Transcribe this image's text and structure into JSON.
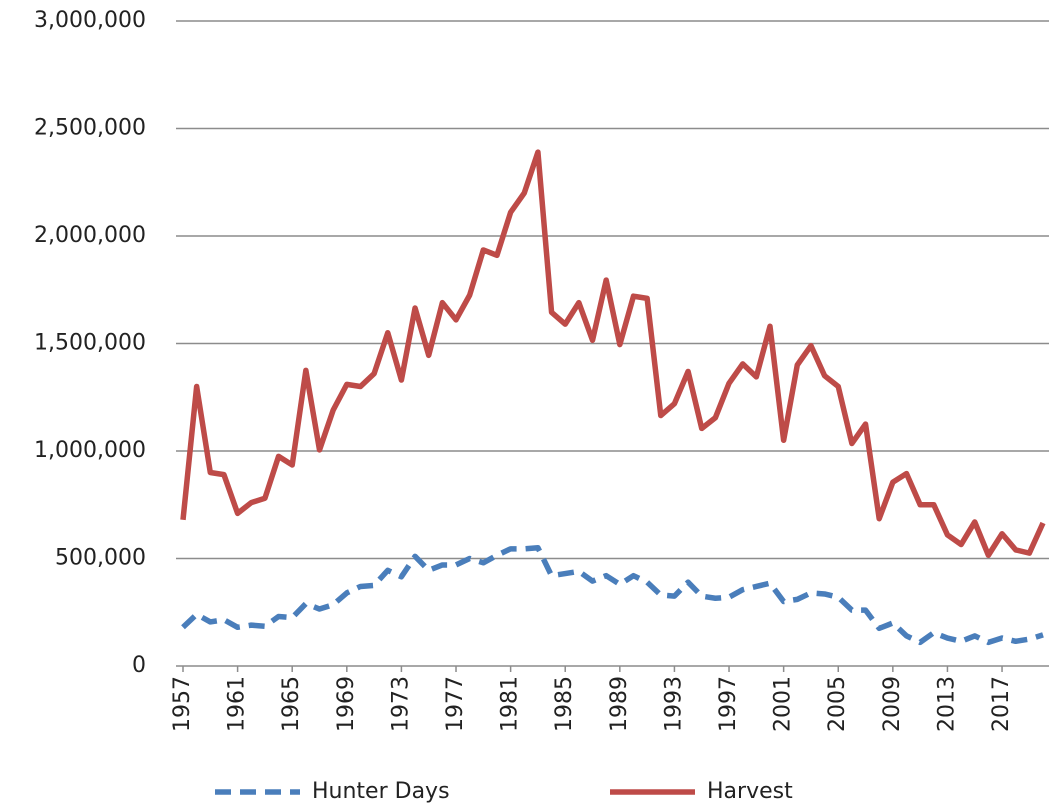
{
  "chart_data": {
    "type": "line",
    "x": [
      1957,
      1958,
      1959,
      1960,
      1961,
      1962,
      1963,
      1964,
      1965,
      1966,
      1967,
      1968,
      1969,
      1970,
      1971,
      1972,
      1973,
      1974,
      1975,
      1976,
      1977,
      1978,
      1979,
      1980,
      1981,
      1982,
      1983,
      1984,
      1985,
      1986,
      1987,
      1988,
      1989,
      1990,
      1991,
      1992,
      1993,
      1994,
      1995,
      1996,
      1997,
      1998,
      1999,
      2000,
      2001,
      2002,
      2003,
      2004,
      2005,
      2006,
      2007,
      2008,
      2009,
      2010,
      2011,
      2012,
      2013,
      2014,
      2015,
      2016,
      2017,
      2018,
      2019,
      2020
    ],
    "xlim": [
      1957,
      2020
    ],
    "xticks": [
      1957,
      1961,
      1965,
      1969,
      1973,
      1977,
      1981,
      1985,
      1989,
      1993,
      1997,
      2001,
      2005,
      2009,
      2013,
      2017
    ],
    "ylim": [
      0,
      3000000
    ],
    "yticks": [
      0,
      {
        "value": 500000,
        "label": "500,000"
      },
      {
        "value": 1000000,
        "label": "1,000,000"
      },
      {
        "value": 1500000,
        "label": "1,500,000"
      },
      {
        "value": 2000000,
        "label": "2,000,000"
      },
      {
        "value": 2500000,
        "label": "2,500,000"
      },
      {
        "value": 3000000,
        "label": "3,000,000"
      }
    ],
    "grid": true,
    "legend": "bottom",
    "series": [
      {
        "name": "Hunter Days",
        "color": "#4a7ebb",
        "style": "dashed",
        "values": [
          180000,
          240000,
          205000,
          215000,
          180000,
          190000,
          185000,
          230000,
          225000,
          290000,
          265000,
          285000,
          340000,
          370000,
          375000,
          445000,
          415000,
          510000,
          445000,
          470000,
          470000,
          500000,
          480000,
          515000,
          545000,
          545000,
          550000,
          420000,
          430000,
          440000,
          395000,
          420000,
          380000,
          420000,
          390000,
          330000,
          325000,
          390000,
          325000,
          315000,
          320000,
          355000,
          370000,
          385000,
          300000,
          310000,
          340000,
          335000,
          320000,
          260000,
          260000,
          175000,
          200000,
          140000,
          110000,
          155000,
          130000,
          115000,
          140000,
          110000,
          130000,
          115000,
          125000,
          145000
        ]
      },
      {
        "name": "Harvest",
        "color": "#be4b48",
        "style": "solid",
        "values": [
          680000,
          1300000,
          900000,
          890000,
          710000,
          760000,
          780000,
          975000,
          935000,
          1375000,
          1005000,
          1190000,
          1310000,
          1300000,
          1360000,
          1550000,
          1330000,
          1665000,
          1445000,
          1690000,
          1610000,
          1725000,
          1935000,
          1910000,
          2110000,
          2200000,
          2390000,
          1645000,
          1590000,
          1690000,
          1515000,
          1795000,
          1495000,
          1720000,
          1710000,
          1165000,
          1220000,
          1370000,
          1105000,
          1155000,
          1315000,
          1405000,
          1345000,
          1580000,
          1050000,
          1400000,
          1490000,
          1350000,
          1300000,
          1035000,
          1125000,
          685000,
          855000,
          895000,
          750000,
          750000,
          610000,
          565000,
          670000,
          515000,
          615000,
          540000,
          525000,
          665000
        ]
      }
    ]
  }
}
